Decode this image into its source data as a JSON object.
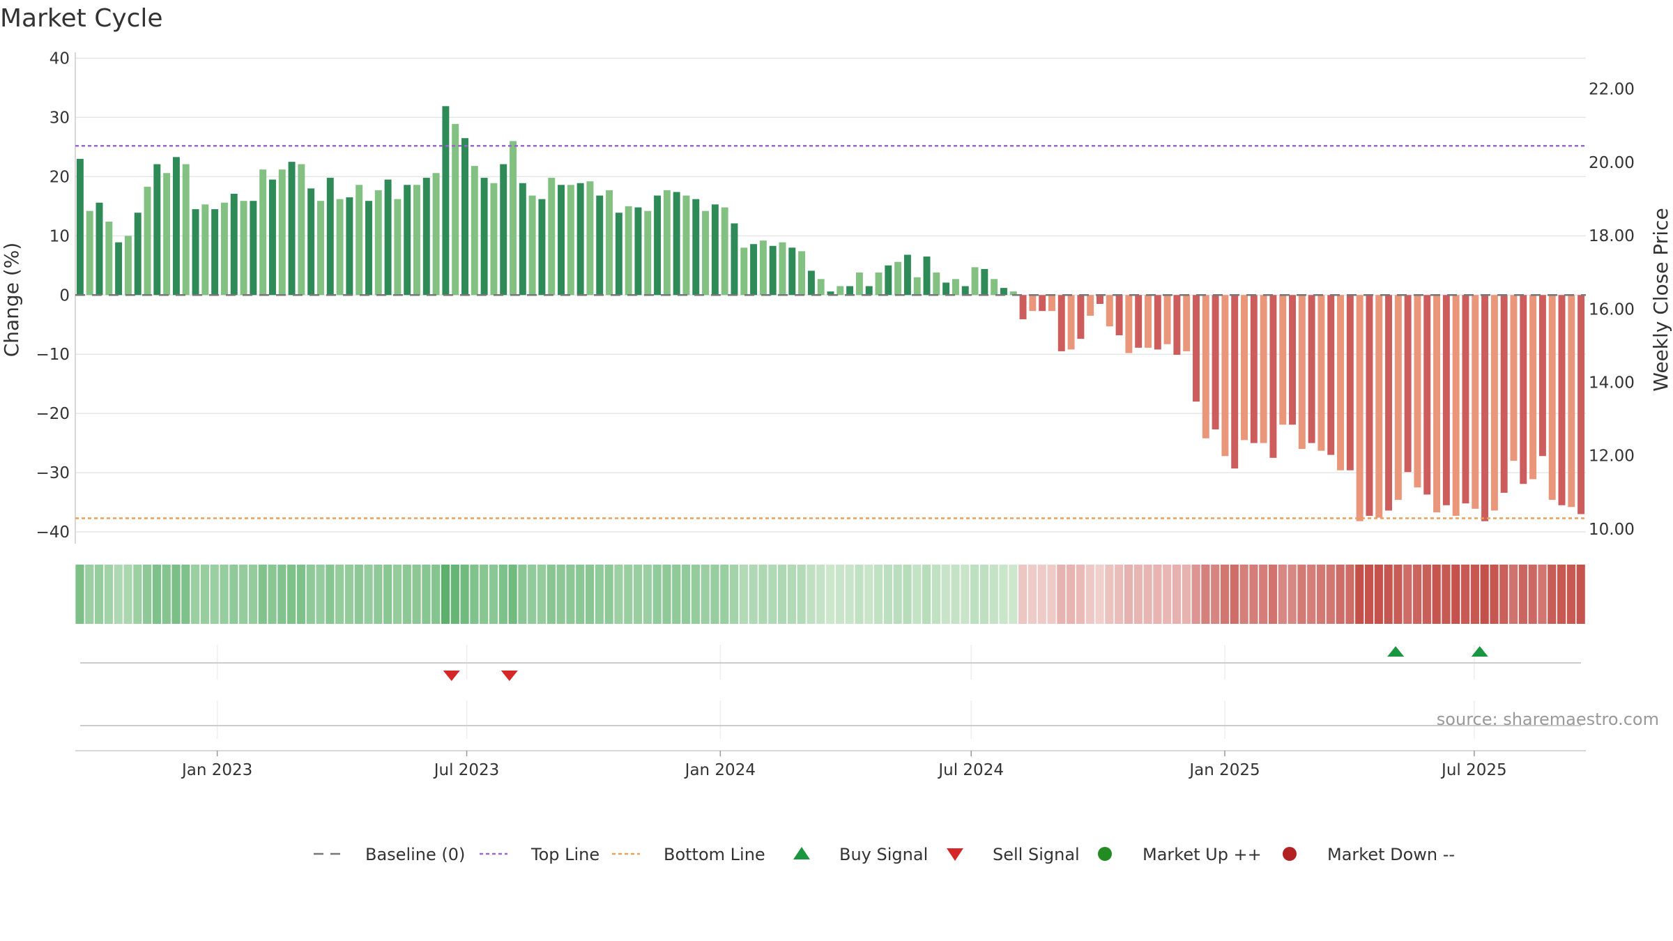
{
  "chart_data": {
    "type": "bar",
    "title": "Market Cycle",
    "ylabel": "Change (%)",
    "y2label": "Weekly Close Price",
    "ylim": [
      -42,
      41
    ],
    "y_ticks": [
      40,
      30,
      20,
      10,
      0,
      -10,
      -20,
      -30,
      -40
    ],
    "y_tick_labels": [
      "40",
      "30",
      "20",
      "10",
      "0",
      "−10",
      "−20",
      "−30",
      "−40"
    ],
    "y2lim": [
      9.6,
      23.0
    ],
    "y2_ticks": [
      22,
      20,
      18,
      16,
      14,
      12,
      10
    ],
    "y2_tick_labels": [
      "22.00",
      "20.00",
      "18.00",
      "16.00",
      "14.00",
      "12.00",
      "10.00"
    ],
    "x_range": [
      "2022-09-20",
      "2025-09-20"
    ],
    "x_ticks": [
      {
        "date": "2023-01-01",
        "label": "Jan 2023"
      },
      {
        "date": "2023-07-01",
        "label": "Jul 2023"
      },
      {
        "date": "2024-01-01",
        "label": "Jan 2024"
      },
      {
        "date": "2024-07-01",
        "label": "Jul 2024"
      },
      {
        "date": "2025-01-01",
        "label": "Jan 2025"
      },
      {
        "date": "2025-07-01",
        "label": "Jul 2025"
      }
    ],
    "top_line": 25.2,
    "bottom_line": -37.7,
    "baseline": 0,
    "first_week": "2022-09-23",
    "values": [
      23,
      14.2,
      15.6,
      12.4,
      8.9,
      10,
      13.9,
      18.3,
      22.1,
      20.6,
      23.3,
      22.1,
      14.5,
      15.3,
      14.5,
      15.6,
      17.1,
      15.9,
      15.9,
      21.2,
      19.5,
      21.2,
      22.5,
      22.1,
      18,
      15.9,
      19.8,
      16.2,
      16.5,
      18.6,
      15.9,
      17.7,
      19.5,
      16.2,
      18.6,
      18.6,
      19.8,
      20.6,
      31.9,
      28.9,
      26.5,
      21.8,
      19.8,
      18.9,
      22.1,
      26,
      18.9,
      16.8,
      16.2,
      19.8,
      18.6,
      18.6,
      18.9,
      19.2,
      16.8,
      17.7,
      13.9,
      15,
      14.8,
      14.2,
      16.8,
      17.7,
      17.4,
      16.8,
      16.2,
      14.2,
      15.3,
      14.8,
      12.1,
      8,
      8.6,
      9.2,
      8.3,
      8.9,
      8,
      7.4,
      4.1,
      2.7,
      0.6,
      1.5,
      1.5,
      3.8,
      1.5,
      3.8,
      5,
      5.6,
      6.8,
      3,
      6.5,
      3.8,
      2.1,
      2.7,
      1.5,
      4.7,
      4.4,
      2.7,
      1.2,
      0.6,
      -4.1,
      -2.7,
      -2.7,
      -2.7,
      -9.5,
      -9.2,
      -7.4,
      -3.5,
      -1.5,
      -5.3,
      -6.8,
      -9.8,
      -8.9,
      -8.9,
      -9.2,
      -8.3,
      -10.1,
      -9.5,
      -18,
      -24.2,
      -22.7,
      -27.2,
      -29.3,
      -24.5,
      -25,
      -25,
      -27.5,
      -21.9,
      -21.9,
      -26,
      -25,
      -26.3,
      -27,
      -29.6,
      -29.6,
      -38.2,
      -37.3,
      -37.6,
      -36.4,
      -34.6,
      -29.9,
      -32.5,
      -33.7,
      -36.7,
      -35.5,
      -37.3,
      -35.2,
      -36.1,
      -38.2,
      -36.4,
      -33.4,
      -28,
      -31.9,
      -31.1,
      -27.2,
      -34.6,
      -35.5,
      -35.8,
      -37
    ]
  },
  "legend": [
    {
      "label": "Baseline (0)",
      "symbol": "dash",
      "color": "#777777"
    },
    {
      "label": "Top Line",
      "symbol": "dotted",
      "color": "#9966cc"
    },
    {
      "label": "Bottom Line",
      "symbol": "dotted",
      "color": "#e8a05c"
    },
    {
      "label": "Buy Signal",
      "symbol": "triangle-up",
      "color": "#1a9641"
    },
    {
      "label": "Sell Signal",
      "symbol": "triangle-down",
      "color": "#d62728"
    },
    {
      "label": "Market Up ++",
      "symbol": "circle",
      "color": "#228b22"
    },
    {
      "label": "Market Down --",
      "symbol": "circle",
      "color": "#b22222"
    }
  ],
  "signals": {
    "buy": [
      "2025-05-05",
      "2025-07-05"
    ],
    "sell": [
      "2023-06-20",
      "2023-08-01"
    ]
  },
  "source": "source: sharemaestro.com",
  "colors": {
    "up_dark": "#2e8b57",
    "up_light": "#82c182",
    "down_dark": "#cd5c5c",
    "down_light": "#e9967a",
    "grid": "#e6e6e6"
  }
}
